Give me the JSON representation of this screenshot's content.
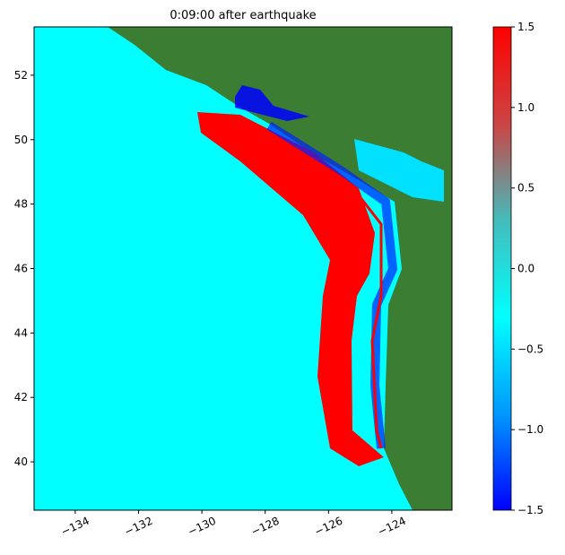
{
  "chart_data": {
    "type": "map",
    "title": "0:09:00 after earthquake",
    "xlim": [
      -135.3,
      -122.1
    ],
    "ylim": [
      38.5,
      53.5
    ],
    "xticks": [
      {
        "value": -134,
        "label": "−134"
      },
      {
        "value": -132,
        "label": "−132"
      },
      {
        "value": -130,
        "label": "−130"
      },
      {
        "value": -128,
        "label": "−128"
      },
      {
        "value": -126,
        "label": "−126"
      },
      {
        "value": -124,
        "label": "−124"
      }
    ],
    "yticks": [
      40,
      42,
      44,
      46,
      48,
      50,
      52
    ],
    "colorbar": {
      "lim": [
        -1.5,
        1.5
      ],
      "colors": [
        "#0000ff",
        "#0099ff",
        "#00ffff",
        "#44bbbb",
        "#cc4444",
        "#ff0000"
      ],
      "ticks": [
        {
          "value": -1.5,
          "label": "−1.5"
        },
        {
          "value": -1.0,
          "label": "−1.0"
        },
        {
          "value": -0.5,
          "label": "−0.5"
        },
        {
          "value": 0,
          "label": "0.0"
        },
        0.5,
        {
          "value": 1.0,
          "label": "1.0"
        },
        1.5
      ]
    }
  }
}
